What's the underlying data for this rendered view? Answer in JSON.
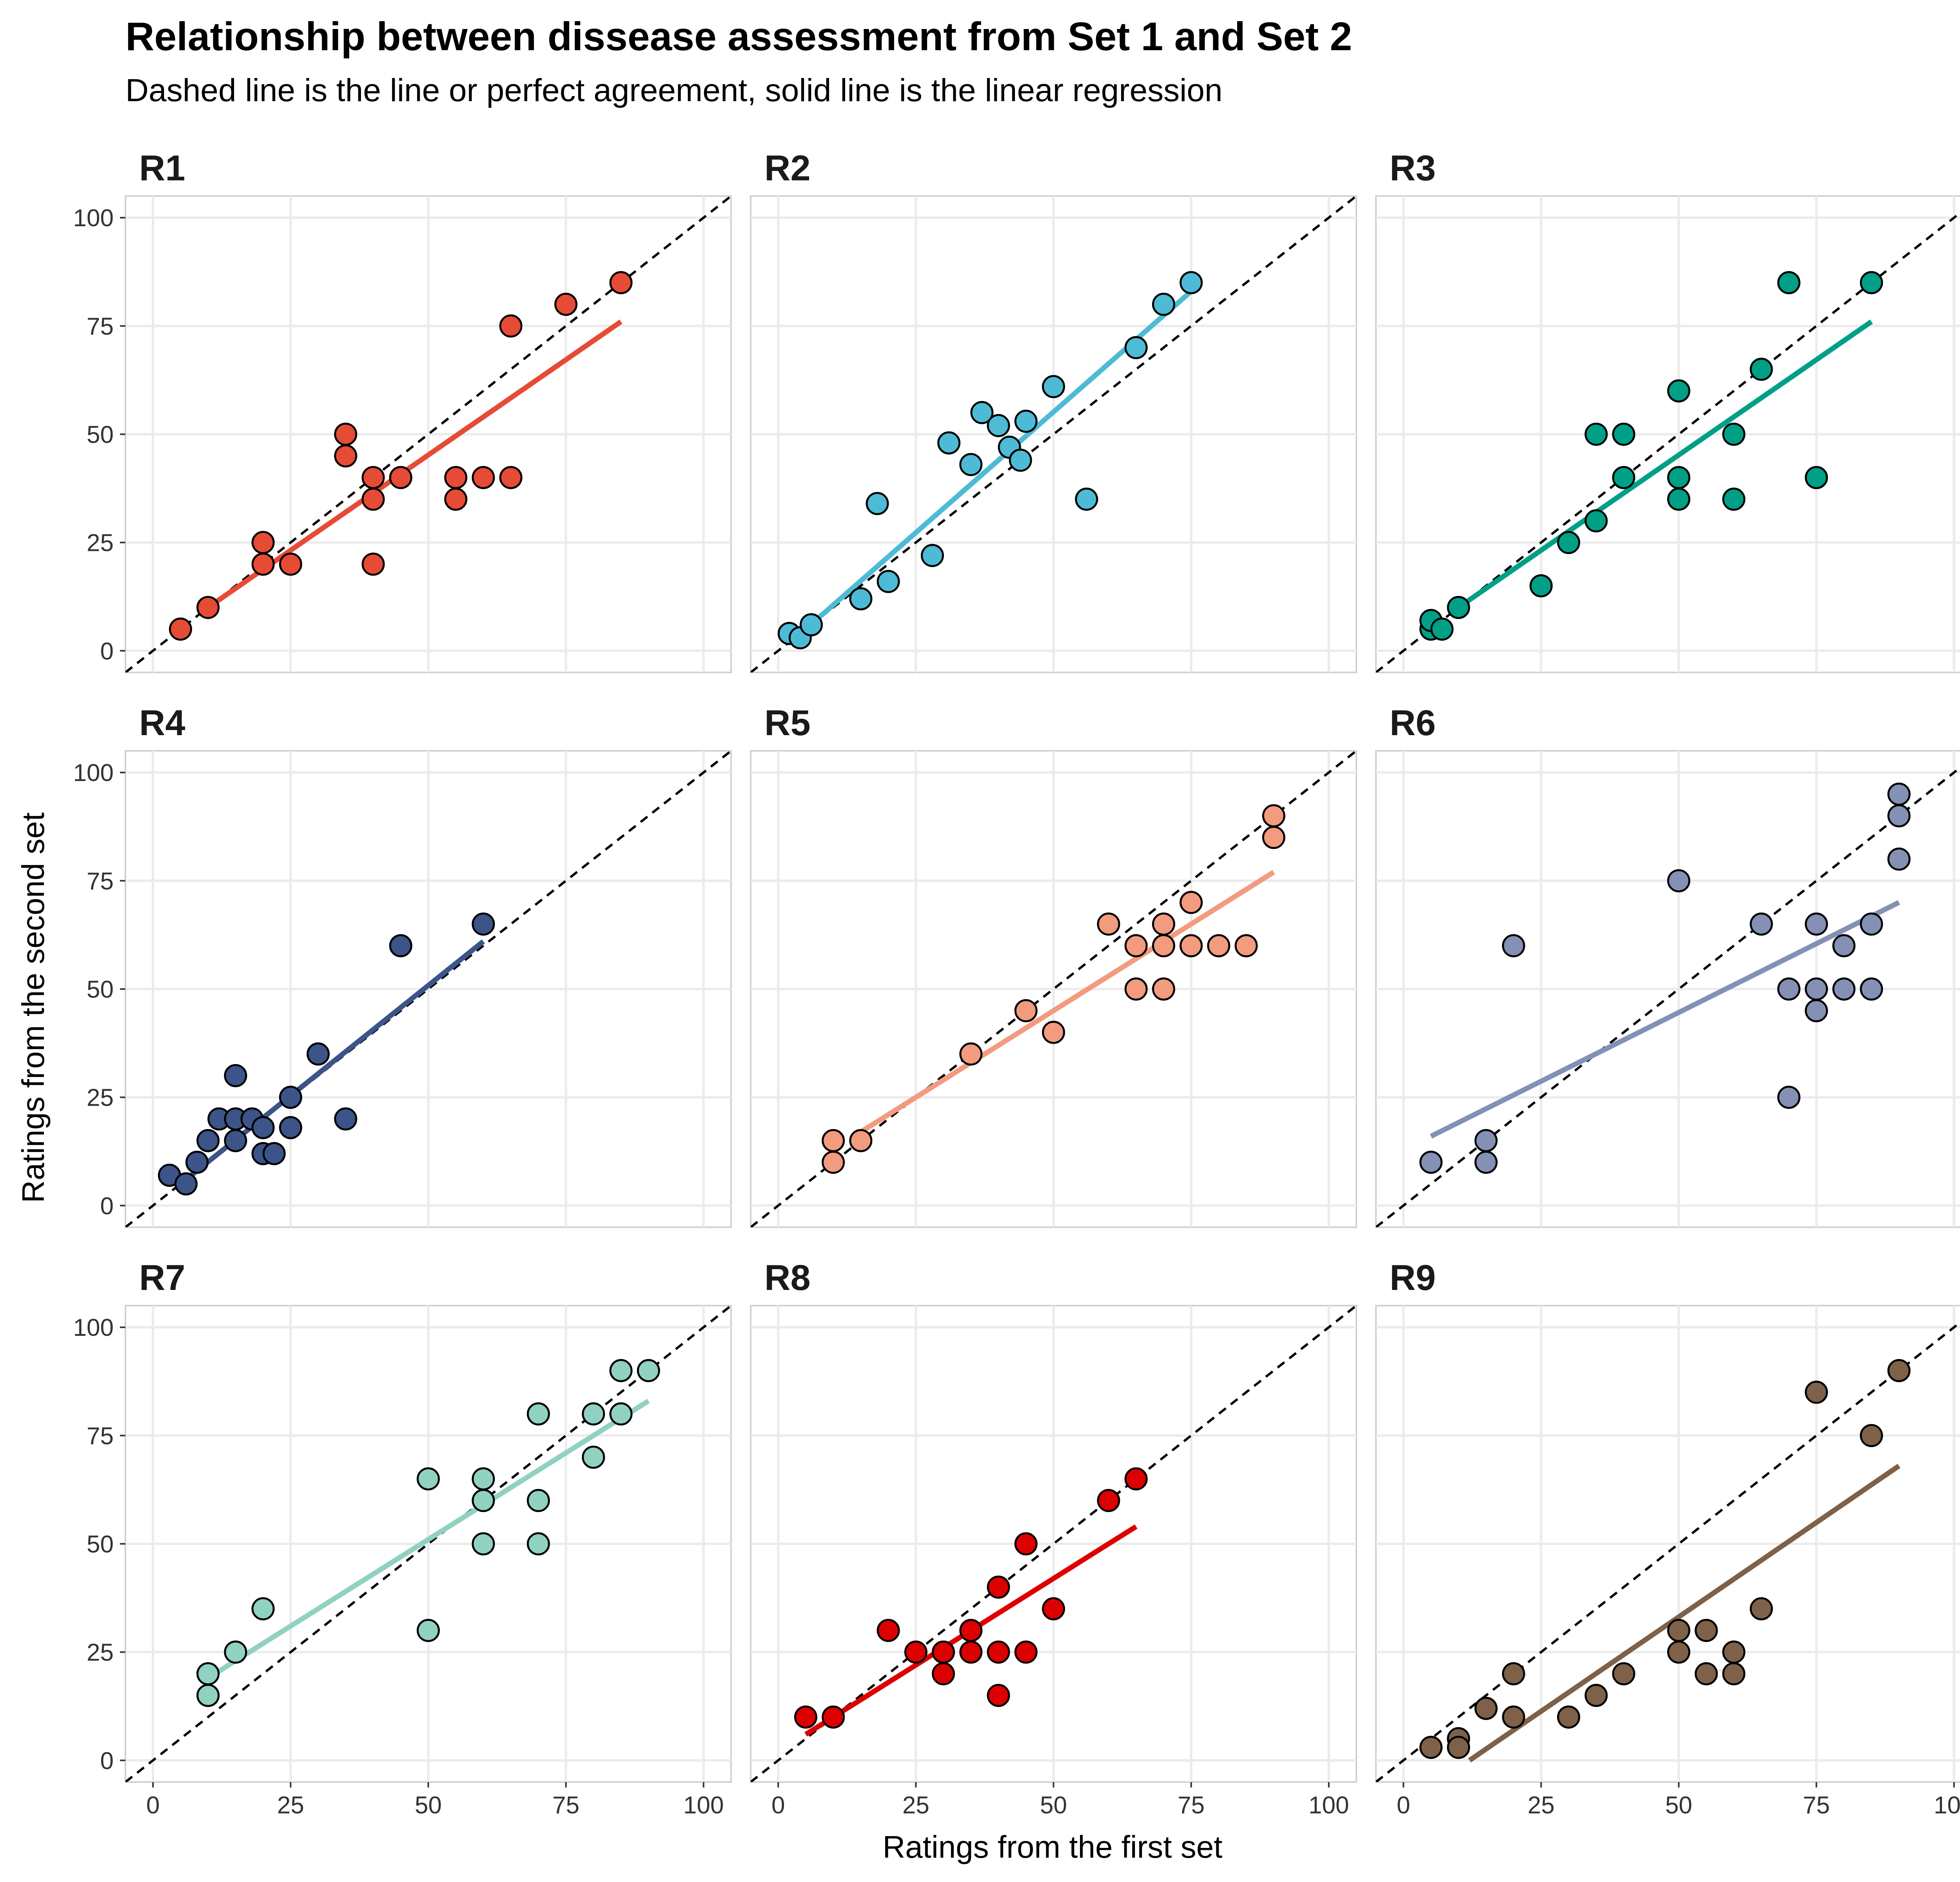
{
  "title": "Relationship between dissease assessment from Set 1 and Set 2",
  "subtitle": "Dashed line is the line or perfect agreement, solid line is the linear regression",
  "chart_data": {
    "type": "scatter",
    "facet_layout": "3x3",
    "xlabel": "Ratings from the first set",
    "ylabel": "Ratings from the second set",
    "xlim": [
      0,
      100
    ],
    "ylim": [
      0,
      100
    ],
    "xticks": [
      0,
      25,
      50,
      75,
      100
    ],
    "yticks": [
      0,
      25,
      50,
      75,
      100
    ],
    "grid": true,
    "legend": "none",
    "panels": [
      {
        "name": "R1",
        "color": "#E64B35",
        "points": [
          [
            5,
            5
          ],
          [
            10,
            10
          ],
          [
            20,
            25
          ],
          [
            20,
            20
          ],
          [
            25,
            20
          ],
          [
            35,
            50
          ],
          [
            35,
            45
          ],
          [
            40,
            40
          ],
          [
            40,
            35
          ],
          [
            40,
            20
          ],
          [
            45,
            40
          ],
          [
            55,
            40
          ],
          [
            55,
            35
          ],
          [
            60,
            40
          ],
          [
            65,
            40
          ],
          [
            65,
            75
          ],
          [
            75,
            80
          ],
          [
            85,
            85
          ]
        ],
        "regression": [
          [
            10,
            10
          ],
          [
            85,
            76
          ]
        ]
      },
      {
        "name": "R2",
        "color": "#4DBBD5",
        "points": [
          [
            2,
            4
          ],
          [
            4,
            3
          ],
          [
            6,
            6
          ],
          [
            15,
            12
          ],
          [
            18,
            34
          ],
          [
            20,
            16
          ],
          [
            28,
            22
          ],
          [
            31,
            48
          ],
          [
            35,
            43
          ],
          [
            37,
            55
          ],
          [
            40,
            52
          ],
          [
            42,
            47
          ],
          [
            44,
            44
          ],
          [
            45,
            53
          ],
          [
            50,
            61
          ],
          [
            56,
            35
          ],
          [
            65,
            70
          ],
          [
            70,
            80
          ],
          [
            75,
            85
          ]
        ],
        "regression": [
          [
            5,
            5
          ],
          [
            75,
            83
          ]
        ]
      },
      {
        "name": "R3",
        "color": "#00A087",
        "points": [
          [
            5,
            5
          ],
          [
            5,
            7
          ],
          [
            7,
            5
          ],
          [
            10,
            10
          ],
          [
            25,
            15
          ],
          [
            30,
            25
          ],
          [
            35,
            30
          ],
          [
            35,
            50
          ],
          [
            40,
            50
          ],
          [
            40,
            40
          ],
          [
            50,
            60
          ],
          [
            50,
            40
          ],
          [
            50,
            35
          ],
          [
            60,
            50
          ],
          [
            60,
            35
          ],
          [
            65,
            65
          ],
          [
            70,
            85
          ],
          [
            75,
            40
          ],
          [
            85,
            85
          ]
        ],
        "regression": [
          [
            10,
            10
          ],
          [
            85,
            76
          ]
        ]
      },
      {
        "name": "R4",
        "color": "#3C5488",
        "points": [
          [
            3,
            7
          ],
          [
            6,
            5
          ],
          [
            8,
            10
          ],
          [
            10,
            15
          ],
          [
            12,
            20
          ],
          [
            15,
            20
          ],
          [
            15,
            15
          ],
          [
            15,
            30
          ],
          [
            18,
            20
          ],
          [
            20,
            18
          ],
          [
            20,
            12
          ],
          [
            22,
            12
          ],
          [
            25,
            25
          ],
          [
            25,
            18
          ],
          [
            30,
            35
          ],
          [
            35,
            20
          ],
          [
            45,
            60
          ],
          [
            60,
            65
          ]
        ],
        "regression": [
          [
            5,
            5
          ],
          [
            60,
            61
          ]
        ]
      },
      {
        "name": "R5",
        "color": "#F39B7F",
        "points": [
          [
            10,
            15
          ],
          [
            10,
            10
          ],
          [
            15,
            15
          ],
          [
            35,
            35
          ],
          [
            45,
            45
          ],
          [
            50,
            40
          ],
          [
            60,
            65
          ],
          [
            65,
            60
          ],
          [
            65,
            50
          ],
          [
            70,
            65
          ],
          [
            70,
            60
          ],
          [
            70,
            50
          ],
          [
            75,
            70
          ],
          [
            75,
            60
          ],
          [
            80,
            60
          ],
          [
            85,
            60
          ],
          [
            90,
            90
          ],
          [
            90,
            85
          ]
        ],
        "regression": [
          [
            15,
            17
          ],
          [
            90,
            77
          ]
        ]
      },
      {
        "name": "R6",
        "color": "#8491B4",
        "points": [
          [
            5,
            10
          ],
          [
            15,
            15
          ],
          [
            15,
            10
          ],
          [
            20,
            60
          ],
          [
            50,
            75
          ],
          [
            65,
            65
          ],
          [
            70,
            50
          ],
          [
            70,
            25
          ],
          [
            75,
            65
          ],
          [
            75,
            50
          ],
          [
            75,
            45
          ],
          [
            80,
            60
          ],
          [
            80,
            50
          ],
          [
            85,
            65
          ],
          [
            85,
            50
          ],
          [
            90,
            95
          ],
          [
            90,
            90
          ],
          [
            90,
            80
          ]
        ],
        "regression": [
          [
            5,
            16
          ],
          [
            90,
            70
          ]
        ]
      },
      {
        "name": "R7",
        "color": "#91D1C2",
        "points": [
          [
            10,
            20
          ],
          [
            10,
            15
          ],
          [
            15,
            25
          ],
          [
            20,
            35
          ],
          [
            50,
            65
          ],
          [
            50,
            30
          ],
          [
            60,
            65
          ],
          [
            60,
            60
          ],
          [
            60,
            50
          ],
          [
            70,
            80
          ],
          [
            70,
            60
          ],
          [
            70,
            50
          ],
          [
            80,
            80
          ],
          [
            80,
            70
          ],
          [
            85,
            90
          ],
          [
            85,
            80
          ],
          [
            90,
            90
          ]
        ],
        "regression": [
          [
            10,
            19
          ],
          [
            90,
            83
          ]
        ]
      },
      {
        "name": "R8",
        "color": "#DC0000",
        "points": [
          [
            5,
            10
          ],
          [
            10,
            10
          ],
          [
            20,
            30
          ],
          [
            25,
            25
          ],
          [
            30,
            25
          ],
          [
            30,
            20
          ],
          [
            35,
            30
          ],
          [
            35,
            25
          ],
          [
            40,
            40
          ],
          [
            40,
            25
          ],
          [
            40,
            15
          ],
          [
            45,
            50
          ],
          [
            45,
            25
          ],
          [
            50,
            35
          ],
          [
            60,
            60
          ],
          [
            65,
            65
          ]
        ],
        "regression": [
          [
            5,
            6
          ],
          [
            65,
            54
          ]
        ]
      },
      {
        "name": "R9",
        "color": "#7E6148",
        "points": [
          [
            5,
            3
          ],
          [
            10,
            5
          ],
          [
            10,
            3
          ],
          [
            15,
            12
          ],
          [
            20,
            20
          ],
          [
            20,
            10
          ],
          [
            30,
            10
          ],
          [
            35,
            15
          ],
          [
            40,
            20
          ],
          [
            50,
            30
          ],
          [
            50,
            25
          ],
          [
            55,
            30
          ],
          [
            55,
            20
          ],
          [
            60,
            25
          ],
          [
            60,
            20
          ],
          [
            65,
            35
          ],
          [
            75,
            85
          ],
          [
            85,
            75
          ],
          [
            90,
            90
          ]
        ],
        "regression": [
          [
            12,
            0
          ],
          [
            90,
            68
          ]
        ]
      }
    ]
  }
}
